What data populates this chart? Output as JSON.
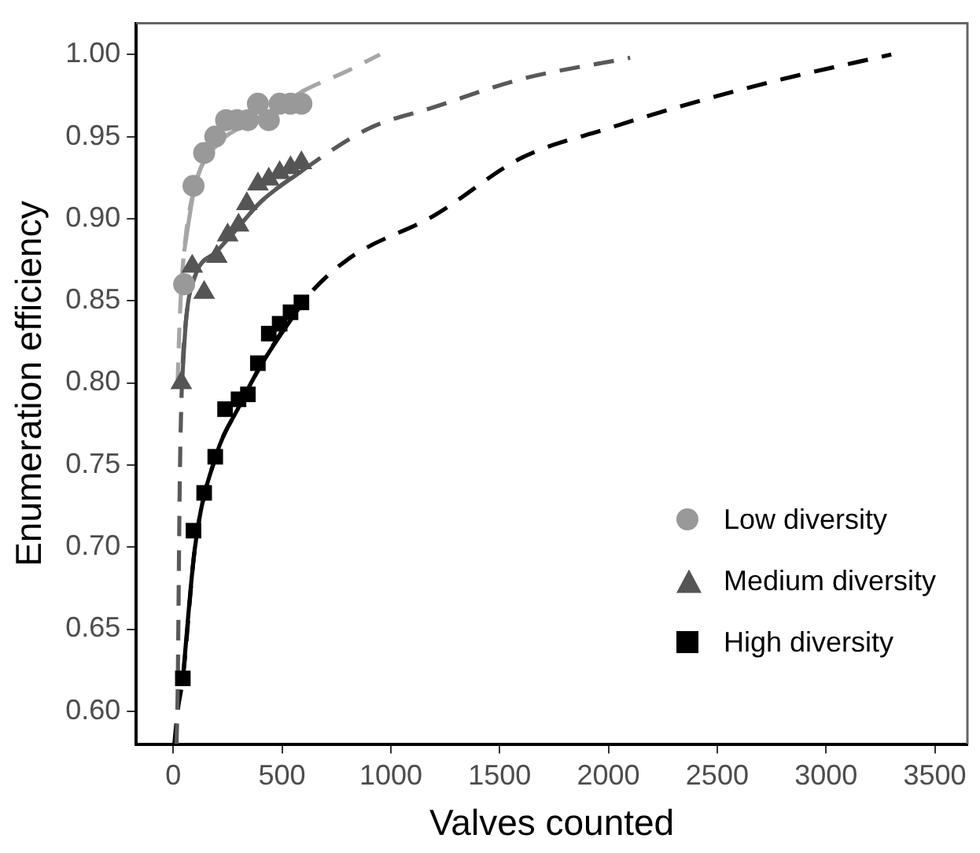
{
  "chart_data": {
    "type": "scatter",
    "xlabel": "Valves counted",
    "ylabel": "Enumeration efficiency",
    "xlim": [
      -170,
      3650
    ],
    "xticks": [
      0,
      500,
      1000,
      1500,
      2000,
      2500,
      3000,
      3500
    ],
    "ylim": [
      0.58,
      1.019
    ],
    "yticks": [
      {
        "value": 0.6,
        "label": "0.60"
      },
      {
        "value": 0.65,
        "label": "0.65"
      },
      {
        "value": 0.7,
        "label": "0.70"
      },
      {
        "value": 0.75,
        "label": "0.75"
      },
      {
        "value": 0.8,
        "label": "0.80"
      },
      {
        "value": 0.85,
        "label": "0.85"
      },
      {
        "value": 0.9,
        "label": "0.90"
      },
      {
        "value": 0.95,
        "label": "0.95"
      },
      {
        "value": 1.0,
        "label": "1.00"
      }
    ],
    "grid": false,
    "legend": "bottom right",
    "series": [
      {
        "type": "line",
        "color": "#a6a6a6",
        "marker": "none",
        "line_style": "dashed",
        "x": [
          20,
          30,
          50,
          100,
          200,
          300,
          400,
          600,
          800,
          950
        ],
        "values": [
          0.8,
          0.84,
          0.88,
          0.92,
          0.945,
          0.955,
          0.962,
          0.978,
          0.99,
          1.0
        ]
      },
      {
        "type": "line",
        "color": "#595959",
        "marker": "none",
        "line_style": "dashed",
        "x": [
          15,
          20,
          30,
          40,
          60,
          100,
          200,
          300,
          400,
          600,
          900,
          1200,
          1600,
          2100
        ],
        "values": [
          0.58,
          0.61,
          0.74,
          0.8,
          0.84,
          0.865,
          0.88,
          0.895,
          0.91,
          0.93,
          0.955,
          0.968,
          0.985,
          0.998
        ]
      },
      {
        "type": "line",
        "color": "#000000",
        "marker": "none",
        "line_style": "dashed",
        "x": [
          5,
          20,
          44,
          100,
          200,
          300,
          400,
          600,
          800,
          1200,
          1600,
          2000,
          2400,
          2800,
          3300
        ],
        "values": [
          0.58,
          0.6,
          0.62,
          0.7,
          0.757,
          0.785,
          0.81,
          0.85,
          0.875,
          0.902,
          0.937,
          0.955,
          0.971,
          0.985,
          1.0
        ]
      },
      {
        "type": "line",
        "color": "#a6a6a6",
        "marker": "none",
        "line_style": "solid",
        "x": [
          50,
          100,
          200,
          300,
          400,
          600
        ],
        "values": [
          0.88,
          0.92,
          0.945,
          0.955,
          0.962,
          0.978
        ]
      },
      {
        "type": "line",
        "color": "#595959",
        "marker": "none",
        "line_style": "solid",
        "x": [
          40,
          60,
          100,
          200,
          300,
          400,
          600
        ],
        "values": [
          0.8,
          0.84,
          0.865,
          0.88,
          0.895,
          0.91,
          0.93
        ]
      },
      {
        "type": "line",
        "color": "#000000",
        "marker": "none",
        "line_style": "solid",
        "x": [
          44,
          100,
          200,
          300,
          400,
          600
        ],
        "values": [
          0.62,
          0.7,
          0.757,
          0.785,
          0.81,
          0.85
        ]
      },
      {
        "name": "Low diversity",
        "color": "#999999",
        "marker": "circle",
        "x": [
          50,
          93,
          142,
          193,
          243,
          293,
          343,
          389,
          439,
          489,
          539,
          589
        ],
        "values": [
          0.86,
          0.92,
          0.94,
          0.95,
          0.96,
          0.96,
          0.96,
          0.97,
          0.96,
          0.97,
          0.97,
          0.97
        ]
      },
      {
        "name": "Medium diversity",
        "color": "#555555",
        "marker": "triangle",
        "x": [
          37,
          87,
          142,
          200,
          250,
          300,
          338,
          389,
          439,
          489,
          539,
          589
        ],
        "values": [
          0.8,
          0.871,
          0.855,
          0.877,
          0.89,
          0.896,
          0.909,
          0.921,
          0.924,
          0.928,
          0.931,
          0.934
        ]
      },
      {
        "name": "High diversity",
        "color": "#000000",
        "marker": "square",
        "x": [
          44,
          93,
          142,
          193,
          238,
          300,
          343,
          389,
          439,
          489,
          539,
          589
        ],
        "values": [
          0.62,
          0.71,
          0.733,
          0.755,
          0.784,
          0.79,
          0.793,
          0.812,
          0.83,
          0.836,
          0.843,
          0.849
        ]
      }
    ]
  }
}
